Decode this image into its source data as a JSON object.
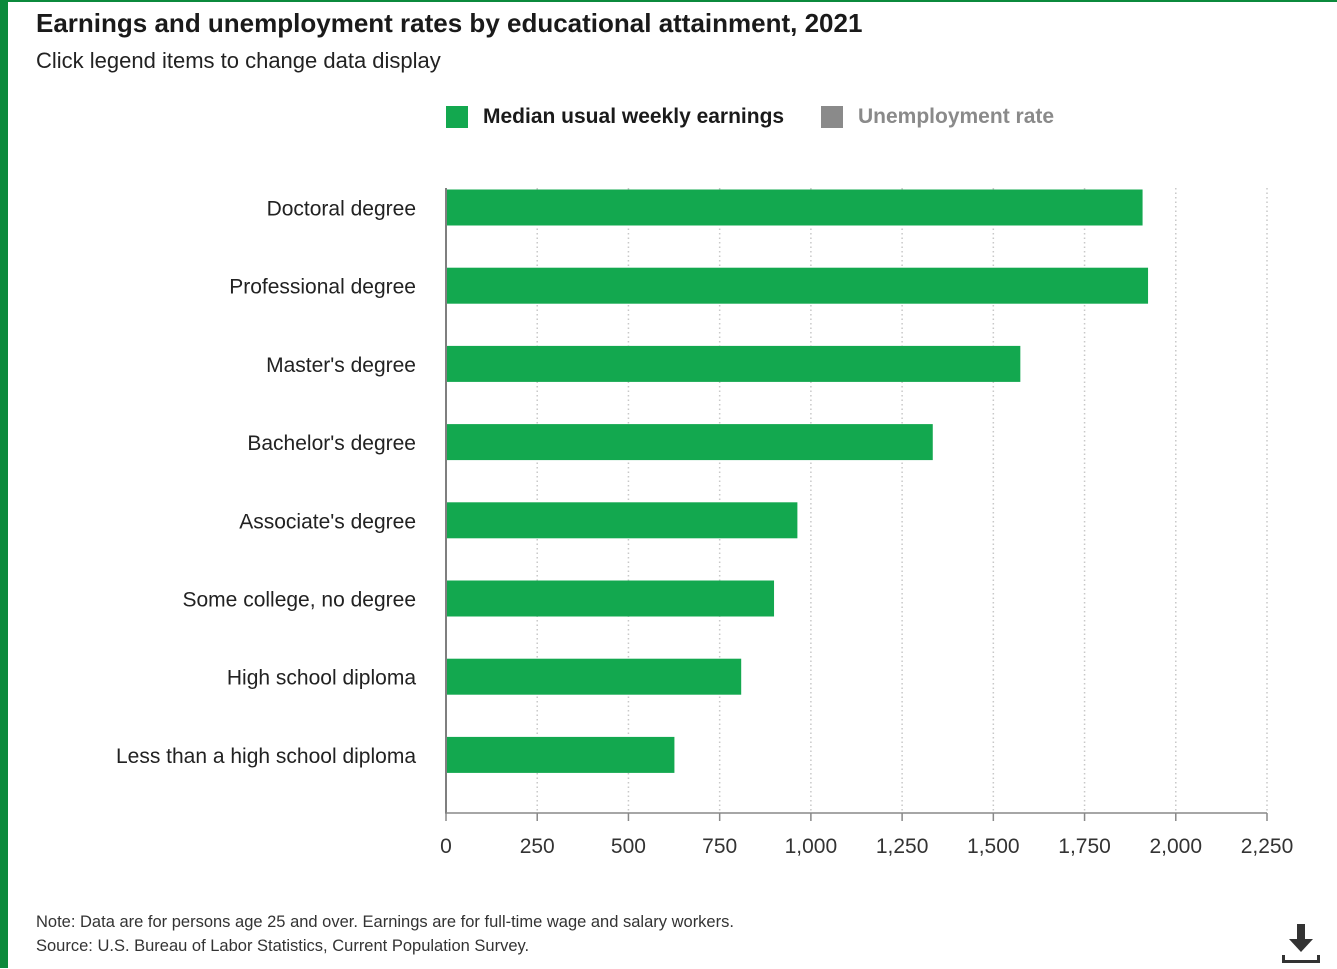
{
  "header": {
    "title": "Earnings and unemployment rates by educational attainment, 2021",
    "subtitle": "Click legend items to change data display"
  },
  "legend": [
    {
      "label": "Median usual weekly earnings",
      "color": "#13a84f",
      "active": true
    },
    {
      "label": "Unemployment rate",
      "color": "#8a8a8a",
      "active": false
    }
  ],
  "chart_data": {
    "type": "bar",
    "orientation": "horizontal",
    "categories": [
      "Doctoral degree",
      "Professional degree",
      "Master's degree",
      "Bachelor's degree",
      "Associate's degree",
      "Some college, no degree",
      "High school diploma",
      "Less than a high school diploma"
    ],
    "series": [
      {
        "name": "Median usual weekly earnings",
        "values": [
          1909,
          1924,
          1574,
          1334,
          963,
          899,
          809,
          626
        ],
        "color": "#13a84f"
      }
    ],
    "xlim": [
      0,
      2250
    ],
    "xticks": [
      0,
      250,
      500,
      750,
      1000,
      1250,
      1500,
      1750,
      2000,
      2250
    ],
    "xtick_labels": [
      "0",
      "250",
      "500",
      "750",
      "1,000",
      "1,250",
      "1,500",
      "1,750",
      "2,000",
      "2,250"
    ],
    "grid": "vertical-dotted",
    "legend_position": "top"
  },
  "notes": {
    "note": "Note: Data are for persons age 25 and over. Earnings are for full-time wage and salary workers.",
    "source": "Source: U.S. Bureau of Labor Statistics, Current Population Survey."
  },
  "icons": {
    "download": "download-icon"
  },
  "colors": {
    "frame": "#0b8a3c",
    "bar": "#13a84f"
  }
}
